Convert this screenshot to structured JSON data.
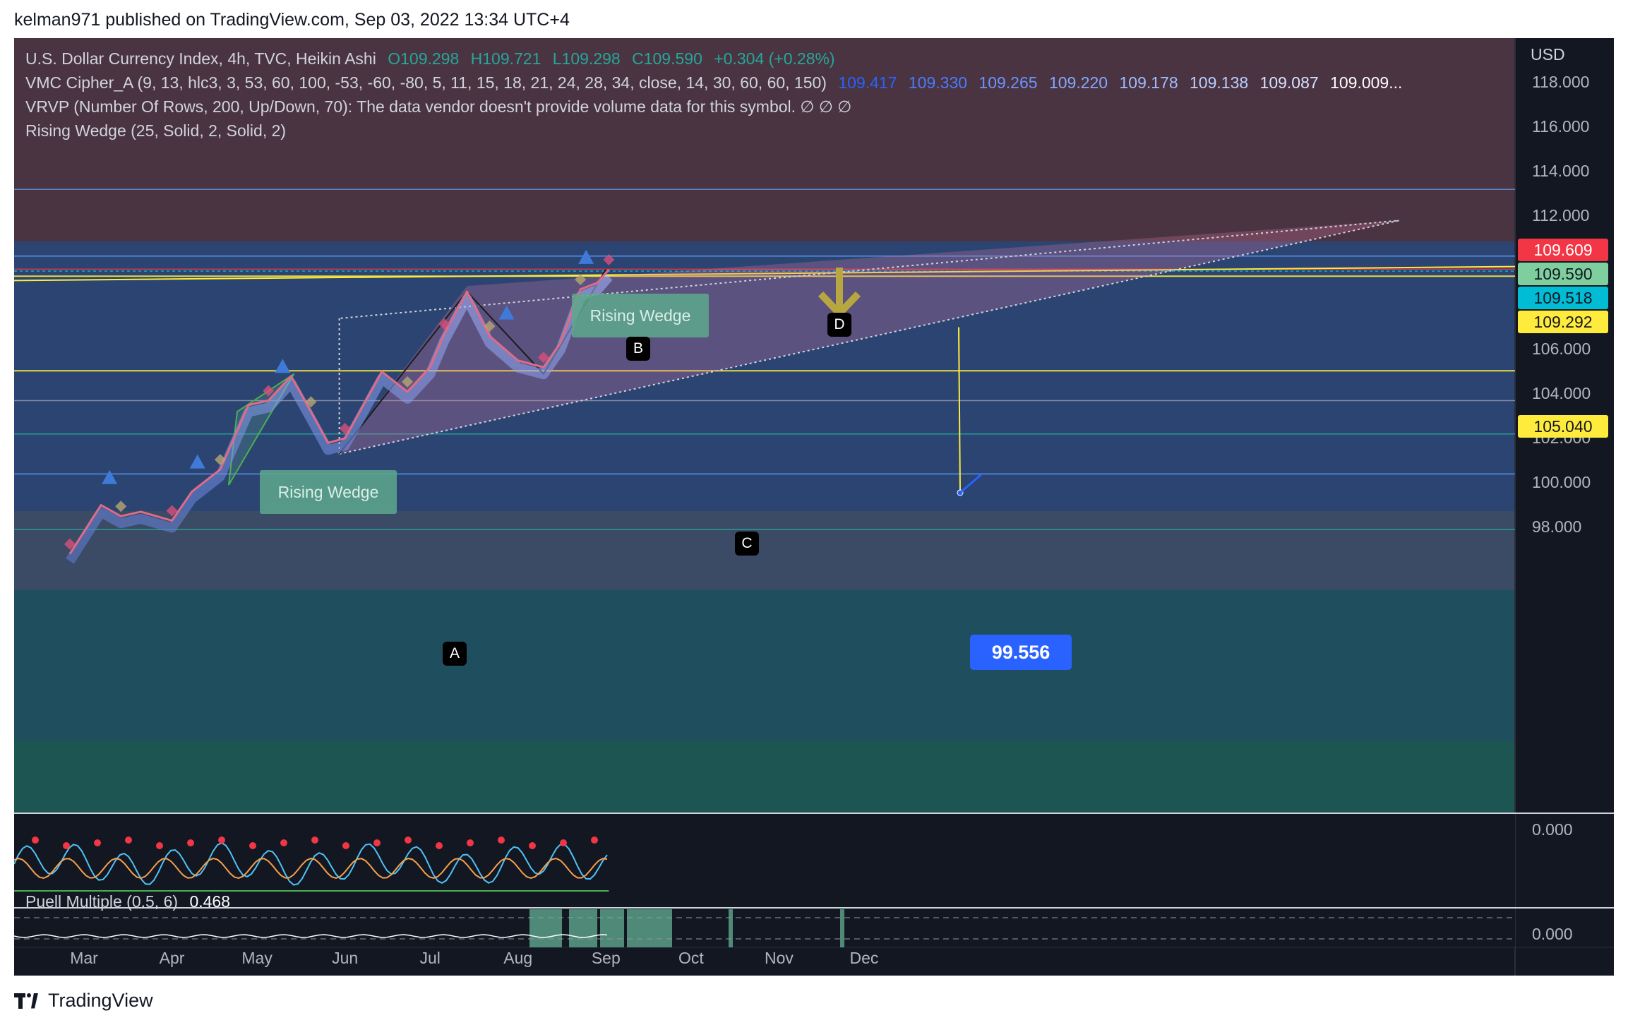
{
  "header": {
    "text": "kelman971 published on TradingView.com, Sep 03, 2022 13:34 UTC+4"
  },
  "footer": {
    "brand": "TradingView"
  },
  "legend": {
    "symbol_line": {
      "name": "U.S. Dollar Currency Index, 4h, TVC, Heikin Ashi",
      "o": "O109.298",
      "h": "H109.721",
      "l": "L109.298",
      "c": "C109.590",
      "change": "+0.304 (+0.28%)"
    },
    "cipher_line": {
      "name": "VMC Cipher_A (9, 13, hlc3, 3, 53, 60, 100, -53, -60, -80, 5, 11, 15, 18, 21, 24, 28, 34, close, 14, 30, 60, 60, 150)",
      "values": [
        "109.417",
        "109.330",
        "109.265",
        "109.220",
        "109.178",
        "109.138",
        "109.087",
        "109.009..."
      ]
    },
    "vrvp_line": "VRVP (Number Of Rows, 200, Up/Down, 70): The data vendor doesn't provide volume data for this symbol.  ∅  ∅  ∅",
    "wedge_line": "Rising Wedge (25, Solid, 2, Solid, 2)"
  },
  "price_axis": {
    "currency": "USD",
    "ticks": [
      "118.000",
      "116.000",
      "114.000",
      "112.000",
      "106.000",
      "104.000",
      "102.000",
      "100.000",
      "98.000"
    ],
    "tags": [
      {
        "label": "109.609",
        "bg": "#f23645",
        "fg": "#ffffff"
      },
      {
        "label": "109.590",
        "bg": "#7fcf9e",
        "fg": "#131722"
      },
      {
        "label": "109.518",
        "bg": "#00bcd4",
        "fg": "#131722"
      },
      {
        "label": "109.292",
        "bg": "#ffeb3b",
        "fg": "#131722"
      },
      {
        "label": "105.040",
        "bg": "#ffeb3b",
        "fg": "#131722"
      }
    ]
  },
  "oscillator": {
    "zero_label": "0.000"
  },
  "puell": {
    "name": "Puell Multiple (0.5, 6)",
    "value": "0.468",
    "zero_label": "0.000"
  },
  "annotations": {
    "wedge_label": "Rising Wedge",
    "points": [
      "A",
      "B",
      "C",
      "D"
    ],
    "target": "99.556"
  },
  "chart_data": {
    "type": "candlestick",
    "title": "U.S. Dollar Currency Index, 4h, TVC, Heikin Ashi",
    "x_labels": [
      "Mar",
      "Apr",
      "May",
      "Jun",
      "Jul",
      "Aug",
      "Sep",
      "Oct",
      "Nov",
      "Dec"
    ],
    "ylim": [
      96.8,
      119.5
    ],
    "y_ticks": [
      98,
      100,
      102,
      104,
      106,
      112,
      114,
      116,
      118
    ],
    "last": {
      "open": 109.298,
      "high": 109.721,
      "low": 109.298,
      "close": 109.59,
      "change": 0.304,
      "change_pct": 0.28
    },
    "price_path": [
      [
        "2022-02-24",
        96.8
      ],
      [
        "2022-03-07",
        99.0
      ],
      [
        "2022-03-14",
        98.5
      ],
      [
        "2022-03-21",
        98.7
      ],
      [
        "2022-04-01",
        98.3
      ],
      [
        "2022-04-08",
        99.6
      ],
      [
        "2022-04-18",
        100.6
      ],
      [
        "2022-04-28",
        103.5
      ],
      [
        "2022-05-05",
        103.7
      ],
      [
        "2022-05-13",
        104.8
      ],
      [
        "2022-05-20",
        103.2
      ],
      [
        "2022-05-26",
        101.8
      ],
      [
        "2022-06-01",
        102.0
      ],
      [
        "2022-06-14",
        105.0
      ],
      [
        "2022-06-23",
        104.1
      ],
      [
        "2022-07-01",
        105.2
      ],
      [
        "2022-07-06",
        106.7
      ],
      [
        "2022-07-14",
        108.6
      ],
      [
        "2022-07-22",
        106.6
      ],
      [
        "2022-08-01",
        105.5
      ],
      [
        "2022-08-10",
        105.2
      ],
      [
        "2022-08-16",
        106.3
      ],
      [
        "2022-08-23",
        108.7
      ],
      [
        "2022-08-29",
        109.0
      ],
      [
        "2022-09-02",
        109.59
      ]
    ],
    "pattern_points": [
      {
        "label": "A",
        "date": "2022-05-30",
        "price": 101.3
      },
      {
        "label": "B",
        "date": "2022-07-14",
        "price": 108.6
      },
      {
        "label": "C",
        "date": "2022-08-10",
        "price": 104.9
      },
      {
        "label": "D",
        "date": "2022-09-01",
        "price": 109.6
      }
    ],
    "horizontal_levels": [
      105.04,
      109.292,
      109.518,
      109.609,
      110.2,
      113.2,
      103.7,
      102.2,
      100.4,
      97.9
    ],
    "target_price": 99.556
  }
}
